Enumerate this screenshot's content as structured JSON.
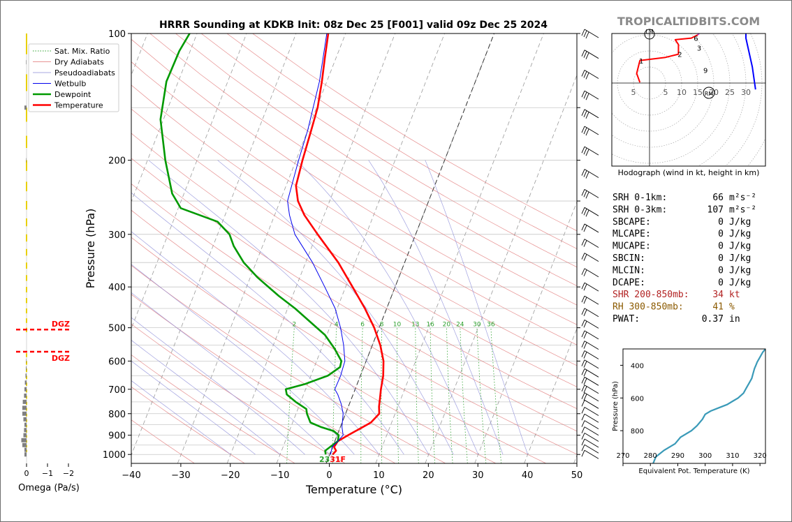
{
  "title": "HRRR Sounding at KDKB Init: 08z Dec 25 [F001] valid 09z Dec 25 2024",
  "watermark": "TROPICALTIDBITS.COM",
  "chart_data": [
    {
      "id": "skewt",
      "type": "line",
      "xlabel": "Temperature (°C)",
      "ylabel": "Pressure (hPa)",
      "xlim": [
        -40,
        50
      ],
      "ylim": [
        1050,
        100
      ],
      "y_scale": "log",
      "x_ticks": [
        "−40",
        "−30",
        "−20",
        "−10",
        "0",
        "10",
        "20",
        "30",
        "40",
        "50"
      ],
      "y_ticks": [
        "100",
        "200",
        "300",
        "400",
        "500",
        "600",
        "700",
        "800",
        "900",
        "1000"
      ],
      "legend": {
        "placement": "top-left",
        "entries": [
          "Sat. Mix. Ratio",
          "Dry Adiabats",
          "Pseudoadiabats",
          "Wetbulb",
          "Dewpoint",
          "Temperature"
        ]
      },
      "mixing_ratio_labels": [
        "2",
        "4",
        "6",
        "8",
        "10",
        "13",
        "16",
        "20",
        "24",
        "30",
        "36"
      ],
      "surface_label": "23",
      "surface_label_2": "31F",
      "series": [
        {
          "name": "Temperature",
          "color": "#ff0000",
          "points": [
            [
              1000,
              0.6
            ],
            [
              980,
              1.0
            ],
            [
              960,
              0.3
            ],
            [
              930,
              0.6
            ],
            [
              900,
              2.2
            ],
            [
              870,
              4.0
            ],
            [
              840,
              5.8
            ],
            [
              800,
              6.8
            ],
            [
              770,
              6.2
            ],
            [
              740,
              5.8
            ],
            [
              700,
              5.2
            ],
            [
              650,
              4.6
            ],
            [
              600,
              3.5
            ],
            [
              550,
              1.6
            ],
            [
              500,
              -1.0
            ],
            [
              450,
              -4.4
            ],
            [
              400,
              -8.6
            ],
            [
              350,
              -13.4
            ],
            [
              300,
              -19.8
            ],
            [
              270,
              -24.0
            ],
            [
              250,
              -26.4
            ],
            [
              230,
              -28.0
            ],
            [
              200,
              -28.7
            ],
            [
              170,
              -29.3
            ],
            [
              150,
              -29.8
            ],
            [
              130,
              -31.0
            ],
            [
              115,
              -32.2
            ],
            [
              100,
              -33.5
            ]
          ]
        },
        {
          "name": "Dewpoint",
          "color": "#009900",
          "points": [
            [
              1000,
              -0.8
            ],
            [
              980,
              -1.2
            ],
            [
              960,
              -0.5
            ],
            [
              930,
              0.6
            ],
            [
              900,
              0.3
            ],
            [
              880,
              -1.0
            ],
            [
              860,
              -4.0
            ],
            [
              840,
              -6.4
            ],
            [
              800,
              -7.8
            ],
            [
              780,
              -8.3
            ],
            [
              750,
              -11.0
            ],
            [
              720,
              -13.4
            ],
            [
              700,
              -14.0
            ],
            [
              680,
              -10.5
            ],
            [
              650,
              -6.6
            ],
            [
              620,
              -4.8
            ],
            [
              600,
              -5.0
            ],
            [
              560,
              -7.4
            ],
            [
              520,
              -10.4
            ],
            [
              500,
              -12.6
            ],
            [
              450,
              -18.5
            ],
            [
              420,
              -22.8
            ],
            [
              380,
              -28.5
            ],
            [
              350,
              -32.5
            ],
            [
              320,
              -35.8
            ],
            [
              300,
              -37.6
            ],
            [
              280,
              -41.0
            ],
            [
              260,
              -49.5
            ],
            [
              240,
              -52.4
            ],
            [
              200,
              -56.4
            ],
            [
              160,
              -60.6
            ],
            [
              130,
              -62.4
            ],
            [
              110,
              -62.2
            ],
            [
              100,
              -61.5
            ]
          ]
        },
        {
          "name": "Wetbulb",
          "color": "#0000ee",
          "points": [
            [
              1000,
              0.2
            ],
            [
              960,
              -0.1
            ],
            [
              930,
              0.6
            ],
            [
              900,
              1.2
            ],
            [
              860,
              0.3
            ],
            [
              800,
              -0.5
            ],
            [
              760,
              -1.6
            ],
            [
              720,
              -3.1
            ],
            [
              700,
              -4.1
            ],
            [
              650,
              -4.0
            ],
            [
              600,
              -4.3
            ],
            [
              550,
              -5.8
            ],
            [
              500,
              -7.8
            ],
            [
              450,
              -10.4
            ],
            [
              400,
              -14.2
            ],
            [
              350,
              -18.6
            ],
            [
              300,
              -24.4
            ],
            [
              270,
              -27.0
            ],
            [
              250,
              -28.5
            ],
            [
              200,
              -29.5
            ],
            [
              170,
              -30.0
            ],
            [
              130,
              -31.5
            ],
            [
              100,
              -33.8
            ]
          ]
        }
      ]
    },
    {
      "id": "hodograph",
      "type": "line",
      "caption": "Hodograph (wind in kt, height in km)",
      "ring_labels": [
        "5",
        "5",
        "10",
        "15",
        "20",
        "25",
        "30"
      ],
      "motion_labels": [
        "LM",
        "RM"
      ],
      "height_labels": [
        "1",
        "2",
        "3",
        "6",
        "9"
      ],
      "segments": [
        {
          "color": "#ff0000",
          "points": [
            [
              -3,
              0.2
            ],
            [
              -4,
              3
            ],
            [
              -3,
              7
            ],
            [
              5,
              8
            ],
            [
              9,
              9
            ],
            [
              9,
              12
            ],
            [
              8,
              13.5
            ],
            [
              13,
              14
            ],
            [
              15,
              15
            ]
          ]
        },
        {
          "color": "#cc33cc",
          "points": [
            [
              15,
              15
            ],
            [
              16,
              16
            ],
            [
              16,
              18
            ],
            [
              15,
              19
            ],
            [
              17,
              19
            ]
          ]
        },
        {
          "color": "#22aa22",
          "points": [
            [
              17,
              19
            ],
            [
              18,
              22
            ],
            [
              19,
              23
            ],
            [
              21,
              24
            ],
            [
              20,
              23
            ],
            [
              18,
              20
            ],
            [
              17,
              19
            ]
          ]
        },
        {
          "color": "#0000ff",
          "points": [
            [
              17,
              19
            ],
            [
              19,
              20
            ],
            [
              21,
              20
            ],
            [
              26,
              19
            ],
            [
              30,
              18
            ],
            [
              30,
              14
            ],
            [
              32,
              5
            ],
            [
              33,
              -2
            ]
          ]
        }
      ]
    },
    {
      "id": "theta-e",
      "type": "line",
      "xlabel": "Equivalent Pot. Temperature (K)",
      "ylabel": "Pressure (hPa)",
      "xlim": [
        270,
        322
      ],
      "ylim": [
        1000,
        300
      ],
      "x_ticks": [
        "270",
        "280",
        "290",
        "300",
        "310",
        "320"
      ],
      "y_ticks": [
        "400",
        "600",
        "800"
      ],
      "points": [
        [
          281,
          1000
        ],
        [
          282,
          960
        ],
        [
          285,
          920
        ],
        [
          289,
          880
        ],
        [
          291,
          840
        ],
        [
          295,
          800
        ],
        [
          297,
          770
        ],
        [
          299,
          730
        ],
        [
          300,
          700
        ],
        [
          302,
          680
        ],
        [
          305,
          660
        ],
        [
          308,
          640
        ],
        [
          310,
          620
        ],
        [
          312,
          600
        ],
        [
          314,
          570
        ],
        [
          315,
          540
        ],
        [
          316,
          510
        ],
        [
          317,
          480
        ],
        [
          317.5,
          450
        ],
        [
          318,
          420
        ],
        [
          318.5,
          400
        ],
        [
          319,
          380
        ],
        [
          320,
          350
        ],
        [
          321,
          320
        ],
        [
          322,
          300
        ]
      ]
    },
    {
      "id": "omega",
      "type": "bar",
      "xlabel": "Omega (Pa/s)",
      "x_ticks": [
        "0",
        "−1",
        "−2"
      ],
      "dgz_label": "DGZ",
      "dgz_bounds_hpa": [
        505,
        570
      ],
      "bars": [
        [
          1000,
          0.1
        ],
        [
          975,
          0.1
        ],
        [
          950,
          0.2
        ],
        [
          925,
          0.25
        ],
        [
          900,
          0.15
        ],
        [
          875,
          0.12
        ],
        [
          850,
          0.1
        ],
        [
          825,
          0.15
        ],
        [
          800,
          0.2
        ],
        [
          775,
          0.2
        ],
        [
          750,
          0.18
        ],
        [
          725,
          0.12
        ],
        [
          700,
          0.1
        ],
        [
          675,
          0.08
        ],
        [
          650,
          0.05
        ],
        [
          625,
          0.03
        ],
        [
          600,
          0.02
        ],
        [
          150,
          0.1
        ],
        [
          200,
          0.02
        ],
        [
          117,
          0.02
        ]
      ]
    }
  ],
  "indices": [
    {
      "label": "SRH 0-1km:",
      "value": "66",
      "unit": "m²s⁻²",
      "color": "#000000"
    },
    {
      "label": "SRH 0-3km:",
      "value": "107",
      "unit": "m²s⁻²",
      "color": "#000000"
    },
    {
      "label": "SBCAPE:",
      "value": "0",
      "unit": "J/kg",
      "color": "#000000"
    },
    {
      "label": "MLCAPE:",
      "value": "0",
      "unit": "J/kg",
      "color": "#000000"
    },
    {
      "label": "MUCAPE:",
      "value": "0",
      "unit": "J/kg",
      "color": "#000000"
    },
    {
      "label": "SBCIN:",
      "value": "0",
      "unit": "J/kg",
      "color": "#000000"
    },
    {
      "label": "MLCIN:",
      "value": "0",
      "unit": "J/kg",
      "color": "#000000"
    },
    {
      "label": "DCAPE:",
      "value": "0",
      "unit": "J/kg",
      "color": "#000000"
    },
    {
      "label": "SHR 200-850mb:",
      "value": "34",
      "unit": "kt",
      "color": "#b22222"
    },
    {
      "label": "RH 300-850mb:",
      "value": "41",
      "unit": "%",
      "color": "#8b5a00"
    },
    {
      "label": "PWAT:",
      "value": "0.37",
      "unit": "in",
      "color": "#000000"
    }
  ]
}
